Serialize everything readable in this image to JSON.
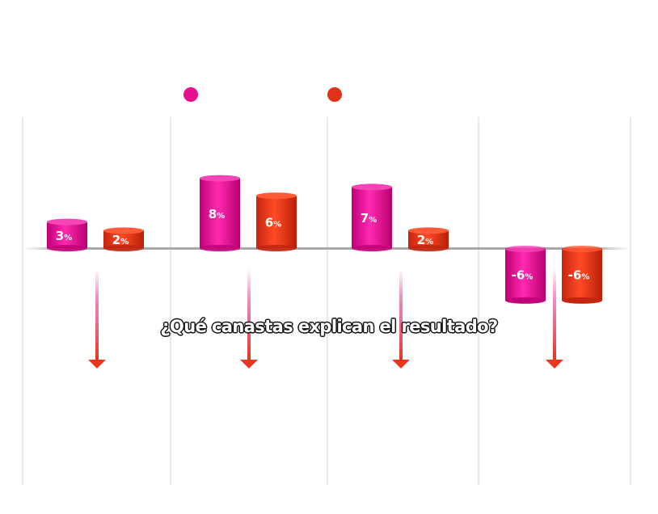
{
  "chart_data": {
    "type": "bar",
    "categories": [
      "",
      "",
      "",
      ""
    ],
    "series": [
      {
        "color": "#e6108f",
        "values": [
          3,
          8,
          7,
          -6
        ]
      },
      {
        "color": "#e0331a",
        "values": [
          2,
          6,
          2,
          -6
        ]
      }
    ],
    "value_suffix": "%",
    "ylim": [
      -6,
      8
    ],
    "grid": "vertical"
  },
  "question": "¿Qué canastas explican el resultado?",
  "icons": {
    "down_arrow": "arrow-down-icon"
  }
}
